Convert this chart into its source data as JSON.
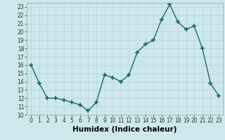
{
  "x": [
    0,
    1,
    2,
    3,
    4,
    5,
    6,
    7,
    8,
    9,
    10,
    11,
    12,
    13,
    14,
    15,
    16,
    17,
    18,
    19,
    20,
    21,
    22,
    23
  ],
  "y": [
    16,
    13.8,
    12,
    12,
    11.8,
    11.5,
    11.2,
    10.5,
    11.5,
    14.8,
    14.5,
    14.0,
    14.8,
    17.5,
    18.5,
    19.0,
    21.5,
    23.3,
    21.2,
    20.3,
    20.7,
    18.0,
    13.8,
    12.3
  ],
  "line_color": "#1a6b5e",
  "marker": "+",
  "marker_size": 4,
  "marker_lw": 1.2,
  "line_width": 1.0,
  "bg_color": "#cce8ea",
  "grid_major_color": "#b8d4d6",
  "grid_minor_color": "#cce8ea",
  "xlabel": "Humidex (Indice chaleur)",
  "xlim": [
    -0.5,
    23.5
  ],
  "ylim": [
    10,
    23.5
  ],
  "yticks": [
    10,
    11,
    12,
    13,
    14,
    15,
    16,
    17,
    18,
    19,
    20,
    21,
    22,
    23
  ],
  "xticks": [
    0,
    1,
    2,
    3,
    4,
    5,
    6,
    7,
    8,
    9,
    10,
    11,
    12,
    13,
    14,
    15,
    16,
    17,
    18,
    19,
    20,
    21,
    22,
    23
  ],
  "tick_fontsize": 5.5,
  "label_fontsize": 7.5
}
